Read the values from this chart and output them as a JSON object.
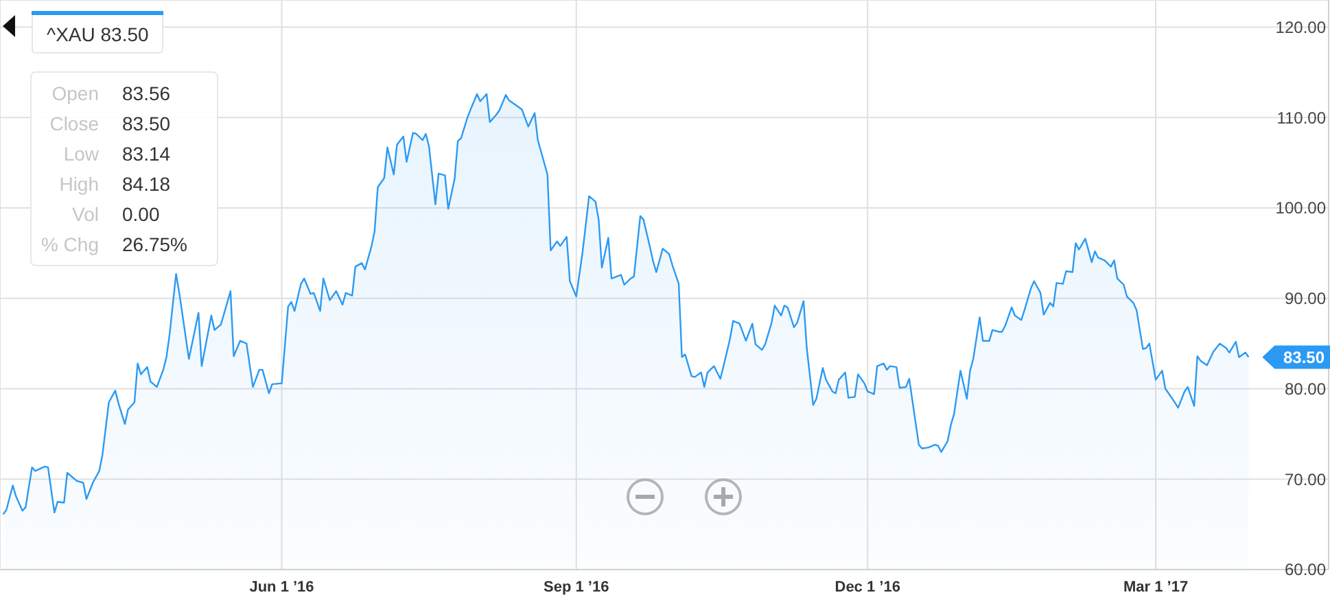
{
  "chart_data": {
    "type": "area",
    "legend": "top left",
    "grid": true,
    "xlim": [
      "2016-03-05",
      "2017-04-24"
    ],
    "xticks": [
      {
        "value": "2016-06-01",
        "label": "Jun 1 ’16"
      },
      {
        "value": "2016-09-01",
        "label": "Sep 1 ’16"
      },
      {
        "value": "2016-12-01",
        "label": "Dec 1 ’16"
      },
      {
        "value": "2017-03-01",
        "label": "Mar 1 ’17"
      }
    ],
    "ylim": [
      60,
      123
    ],
    "yticks": [
      {
        "value": 60,
        "label": "60.00"
      },
      {
        "value": 70,
        "label": "70.00"
      },
      {
        "value": 80,
        "label": "80.00"
      },
      {
        "value": 90,
        "label": "90.00"
      },
      {
        "value": 100,
        "label": "100.00"
      },
      {
        "value": 110,
        "label": "110.00"
      },
      {
        "value": 120,
        "label": "120.00"
      }
    ],
    "annotations": [
      "Open 83.56",
      "Close 83.50",
      "Low 83.14",
      "High 84.18",
      "Vol 0.00",
      "% Chg 26.75%",
      {
        "text": "83.50",
        "x": "2017-03-30",
        "y": 83.5
      }
    ],
    "x": [
      "2016-03-06",
      "2016-03-07",
      "2016-03-09",
      "2016-03-10",
      "2016-03-12",
      "2016-03-13",
      "2016-03-15",
      "2016-03-16",
      "2016-03-19",
      "2016-03-20",
      "2016-03-22",
      "2016-03-23",
      "2016-03-25",
      "2016-03-26",
      "2016-03-29",
      "2016-03-31",
      "2016-04-01",
      "2016-04-03",
      "2016-04-05",
      "2016-04-06",
      "2016-04-08",
      "2016-04-10",
      "2016-04-11",
      "2016-04-13",
      "2016-04-14",
      "2016-04-16",
      "2016-04-17",
      "2016-04-18",
      "2016-04-20",
      "2016-04-21",
      "2016-04-23",
      "2016-04-25",
      "2016-04-26",
      "2016-04-27",
      "2016-04-29",
      "2016-04-30",
      "2016-05-03",
      "2016-05-04",
      "2016-05-06",
      "2016-05-07",
      "2016-05-10",
      "2016-05-11",
      "2016-05-13",
      "2016-05-16",
      "2016-05-17",
      "2016-05-19",
      "2016-05-21",
      "2016-05-23",
      "2016-05-25",
      "2016-05-26",
      "2016-05-28",
      "2016-05-29",
      "2016-06-01",
      "2016-06-03",
      "2016-06-04",
      "2016-06-05",
      "2016-06-07",
      "2016-06-08",
      "2016-06-10",
      "2016-06-11",
      "2016-06-13",
      "2016-06-14",
      "2016-06-16",
      "2016-06-18",
      "2016-06-20",
      "2016-06-21",
      "2016-06-23",
      "2016-06-24",
      "2016-06-26",
      "2016-06-27",
      "2016-06-29",
      "2016-06-30",
      "2016-07-01",
      "2016-07-03",
      "2016-07-04",
      "2016-07-06",
      "2016-07-07",
      "2016-07-09",
      "2016-07-10",
      "2016-07-12",
      "2016-07-13",
      "2016-07-15",
      "2016-07-16",
      "2016-07-17",
      "2016-07-19",
      "2016-07-20",
      "2016-07-22",
      "2016-07-23",
      "2016-07-25",
      "2016-07-26",
      "2016-07-27",
      "2016-07-29",
      "2016-07-30",
      "2016-08-01",
      "2016-08-02",
      "2016-08-04",
      "2016-08-05",
      "2016-08-07",
      "2016-08-08",
      "2016-08-10",
      "2016-08-11",
      "2016-08-13",
      "2016-08-15",
      "2016-08-17",
      "2016-08-19",
      "2016-08-20",
      "2016-08-23",
      "2016-08-24",
      "2016-08-26",
      "2016-08-27",
      "2016-08-29",
      "2016-08-30",
      "2016-09-01",
      "2016-09-03",
      "2016-09-05",
      "2016-09-07",
      "2016-09-08",
      "2016-09-09",
      "2016-09-11",
      "2016-09-12",
      "2016-09-15",
      "2016-09-16",
      "2016-09-18",
      "2016-09-19",
      "2016-09-21",
      "2016-09-22",
      "2016-09-24",
      "2016-09-25",
      "2016-09-26",
      "2016-09-28",
      "2016-09-30",
      "2016-10-01",
      "2016-10-03",
      "2016-10-04",
      "2016-10-05",
      "2016-10-07",
      "2016-10-08",
      "2016-10-10",
      "2016-10-11",
      "2016-10-12",
      "2016-10-14",
      "2016-10-16",
      "2016-10-17",
      "2016-10-19",
      "2016-10-20",
      "2016-10-22",
      "2016-10-24",
      "2016-10-26",
      "2016-10-27",
      "2016-10-29",
      "2016-10-30",
      "2016-11-01",
      "2016-11-02",
      "2016-11-04",
      "2016-11-05",
      "2016-11-06",
      "2016-11-08",
      "2016-11-09",
      "2016-11-11",
      "2016-11-12",
      "2016-11-14",
      "2016-11-15",
      "2016-11-17",
      "2016-11-18",
      "2016-11-20",
      "2016-11-21",
      "2016-11-22",
      "2016-11-24",
      "2016-11-25",
      "2016-11-27",
      "2016-11-28",
      "2016-11-30",
      "2016-12-01",
      "2016-12-03",
      "2016-12-04",
      "2016-12-06",
      "2016-12-07",
      "2016-12-08",
      "2016-12-10",
      "2016-12-11",
      "2016-12-13",
      "2016-12-14",
      "2016-12-17",
      "2016-12-18",
      "2016-12-20",
      "2016-12-22",
      "2016-12-23",
      "2016-12-24",
      "2016-12-26",
      "2016-12-27",
      "2016-12-28",
      "2016-12-30",
      "2017-01-01",
      "2017-01-02",
      "2017-01-03",
      "2017-01-05",
      "2017-01-06",
      "2017-01-08",
      "2017-01-09",
      "2017-01-11",
      "2017-01-12",
      "2017-01-13",
      "2017-01-15",
      "2017-01-16",
      "2017-01-18",
      "2017-01-19",
      "2017-01-21",
      "2017-01-22",
      "2017-01-24",
      "2017-01-25",
      "2017-01-27",
      "2017-01-28",
      "2017-01-29",
      "2017-01-31",
      "2017-02-01",
      "2017-02-03",
      "2017-02-04",
      "2017-02-05",
      "2017-02-07",
      "2017-02-09",
      "2017-02-10",
      "2017-02-11",
      "2017-02-13",
      "2017-02-15",
      "2017-02-16",
      "2017-02-17",
      "2017-02-19",
      "2017-02-20",
      "2017-02-22",
      "2017-02-23",
      "2017-02-25",
      "2017-02-26",
      "2017-02-27",
      "2017-03-01",
      "2017-03-03",
      "2017-03-04",
      "2017-03-06",
      "2017-03-08",
      "2017-03-10",
      "2017-03-11",
      "2017-03-13",
      "2017-03-14",
      "2017-03-15",
      "2017-03-17",
      "2017-03-19",
      "2017-03-21",
      "2017-03-23",
      "2017-03-24",
      "2017-03-26",
      "2017-03-27",
      "2017-03-29",
      "2017-03-30"
    ],
    "series": [
      {
        "name": "^XAU 83.50",
        "color": "#2b9af3",
        "values": [
          66.1,
          66.6,
          69.3,
          68.1,
          66.5,
          66.9,
          71.3,
          70.9,
          71.4,
          71.3,
          66.3,
          67.5,
          67.4,
          70.7,
          69.8,
          69.6,
          67.8,
          69.6,
          70.9,
          72.7,
          78.5,
          79.8,
          78.4,
          76.1,
          77.7,
          78.5,
          82.8,
          81.6,
          82.4,
          80.8,
          80.2,
          82.1,
          83.5,
          86.1,
          92.7,
          90.6,
          83.3,
          85.0,
          88.4,
          82.5,
          88.1,
          86.5,
          87.1,
          90.8,
          83.6,
          85.3,
          85.0,
          80.2,
          82.1,
          82.1,
          79.5,
          80.5,
          80.6,
          89.1,
          89.6,
          88.6,
          91.6,
          92.2,
          90.5,
          90.6,
          88.6,
          92.2,
          89.8,
          90.8,
          89.3,
          90.6,
          90.3,
          93.5,
          93.9,
          93.2,
          95.7,
          97.4,
          102.3,
          103.3,
          106.7,
          103.7,
          107.0,
          107.9,
          105.1,
          108.3,
          108.2,
          107.5,
          108.2,
          106.8,
          100.4,
          103.8,
          103.6,
          99.9,
          103.2,
          107.4,
          107.7,
          110.0,
          110.9,
          112.6,
          111.8,
          112.6,
          109.5,
          110.3,
          110.8,
          112.5,
          111.9,
          111.4,
          110.9,
          109.0,
          110.5,
          107.5,
          103.7,
          95.3,
          96.3,
          95.8,
          96.8,
          91.9,
          90.2,
          95.2,
          101.3,
          100.7,
          98.7,
          93.4,
          96.7,
          92.2,
          92.6,
          91.5,
          92.2,
          92.4,
          99.1,
          98.7,
          95.7,
          94.1,
          92.9,
          95.5,
          94.9,
          93.7,
          91.6,
          83.5,
          83.8,
          81.4,
          81.3,
          81.8,
          80.2,
          81.8,
          82.5,
          81.1,
          82.5,
          85.5,
          87.5,
          87.2,
          85.3,
          87.2,
          84.9,
          84.3,
          84.9,
          87.3,
          89.2,
          88.1,
          89.2,
          89.0,
          86.8,
          87.3,
          89.7,
          84.5,
          78.2,
          78.9,
          82.3,
          81.0,
          79.7,
          79.5,
          81.0,
          81.8,
          79.0,
          79.1,
          81.6,
          80.6,
          79.7,
          79.4,
          82.5,
          82.8,
          82.1,
          82.5,
          82.4,
          80.1,
          80.2,
          81.1,
          73.8,
          73.4,
          73.5,
          73.8,
          73.7,
          73.0,
          74.2,
          76.0,
          77.2,
          82.0,
          78.9,
          82.0,
          83.3,
          87.9,
          85.3,
          85.3,
          86.5,
          86.3,
          86.3,
          87.0,
          89.0,
          88.1,
          87.6,
          88.7,
          91.1,
          91.9,
          90.6,
          88.2,
          89.5,
          89.1,
          91.7,
          91.6,
          93.0,
          92.9,
          96.1,
          95.4,
          96.6,
          94.0,
          95.2,
          94.5,
          94.2,
          93.5,
          94.2,
          92.2,
          91.5,
          90.2,
          89.5,
          88.7,
          84.4,
          84.5,
          85.0,
          81.0,
          82.0,
          80.0,
          79.0,
          77.9,
          79.7,
          80.2,
          78.1,
          83.6,
          83.1,
          82.6,
          84.1,
          85.0,
          84.5,
          84.0,
          85.2,
          83.5,
          84.0,
          83.5
        ]
      }
    ]
  }
}
